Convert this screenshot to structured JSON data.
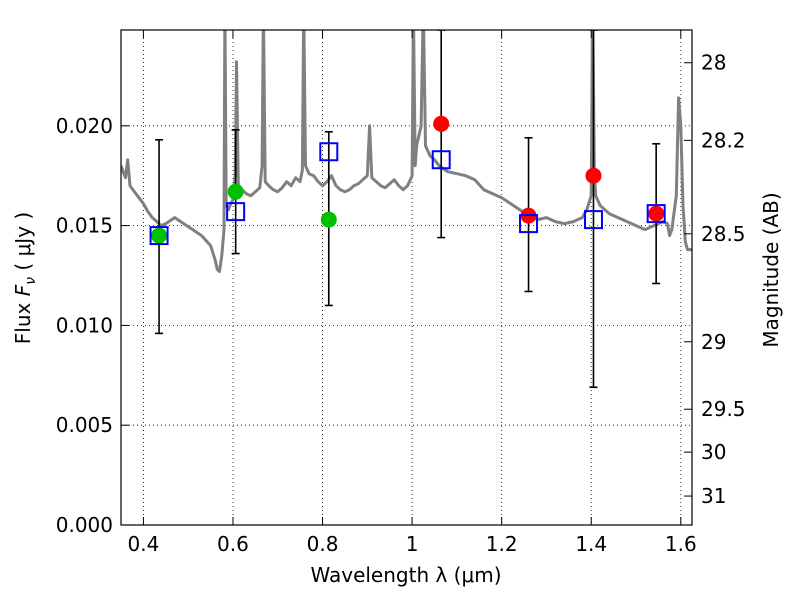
{
  "chart_data": {
    "type": "scatter",
    "xlabel": "Wavelength  λ (μm)",
    "ylabel_parts": {
      "flux": "Flux",
      "symbol": "F",
      "subscript": "ν",
      "unit": "( μJy )"
    },
    "ylabel_right": "Magnitude (AB)",
    "xlim": [
      0.35,
      1.625
    ],
    "ylim": [
      0.0,
      0.0248
    ],
    "grid": true,
    "x_ticks": [
      {
        "value": 0.4,
        "label": "0.4"
      },
      {
        "value": 0.6,
        "label": "0.6"
      },
      {
        "value": 0.8,
        "label": "0.8"
      },
      {
        "value": 1.0,
        "label": "1"
      },
      {
        "value": 1.2,
        "label": "1.2"
      },
      {
        "value": 1.4,
        "label": "1.4"
      },
      {
        "value": 1.6,
        "label": "1.6"
      }
    ],
    "y_ticks": [
      {
        "value": 0.0,
        "label": "0.000"
      },
      {
        "value": 0.005,
        "label": "0.005"
      },
      {
        "value": 0.01,
        "label": "0.010"
      },
      {
        "value": 0.015,
        "label": "0.015"
      },
      {
        "value": 0.02,
        "label": "0.020"
      }
    ],
    "right_ticks": [
      {
        "flux": 0.02316,
        "label": "28"
      },
      {
        "flux": 0.01927,
        "label": "28.2"
      },
      {
        "flux": 0.01459,
        "label": "28.5"
      },
      {
        "flux": 0.00918,
        "label": "29"
      },
      {
        "flux": 0.0058,
        "label": "29.5"
      },
      {
        "flux": 0.00365,
        "label": "30"
      },
      {
        "flux": 0.00145,
        "label": "31"
      }
    ],
    "model_spectrum": {
      "color": "#808080",
      "points": [
        [
          0.35,
          0.018
        ],
        [
          0.36,
          0.0174
        ],
        [
          0.365,
          0.0183
        ],
        [
          0.37,
          0.017
        ],
        [
          0.38,
          0.0167
        ],
        [
          0.39,
          0.0164
        ],
        [
          0.4,
          0.0161
        ],
        [
          0.41,
          0.0157
        ],
        [
          0.42,
          0.0154
        ],
        [
          0.43,
          0.0152
        ],
        [
          0.44,
          0.015
        ],
        [
          0.45,
          0.0151
        ],
        [
          0.47,
          0.0154
        ],
        [
          0.49,
          0.0151
        ],
        [
          0.51,
          0.0148
        ],
        [
          0.53,
          0.0145
        ],
        [
          0.55,
          0.014
        ],
        [
          0.56,
          0.0133
        ],
        [
          0.565,
          0.0128
        ],
        [
          0.57,
          0.0127
        ],
        [
          0.575,
          0.0135
        ],
        [
          0.58,
          0.0148
        ],
        [
          0.582,
          0.026
        ],
        [
          0.585,
          0.016
        ],
        [
          0.59,
          0.0158
        ],
        [
          0.595,
          0.0161
        ],
        [
          0.6,
          0.0163
        ],
        [
          0.605,
          0.0175
        ],
        [
          0.608,
          0.0232
        ],
        [
          0.612,
          0.017
        ],
        [
          0.62,
          0.0168
        ],
        [
          0.63,
          0.0166
        ],
        [
          0.64,
          0.0165
        ],
        [
          0.65,
          0.0167
        ],
        [
          0.66,
          0.0169
        ],
        [
          0.665,
          0.018
        ],
        [
          0.668,
          0.026
        ],
        [
          0.672,
          0.0172
        ],
        [
          0.68,
          0.017
        ],
        [
          0.69,
          0.0168
        ],
        [
          0.7,
          0.0167
        ],
        [
          0.71,
          0.0169
        ],
        [
          0.72,
          0.0172
        ],
        [
          0.73,
          0.017
        ],
        [
          0.74,
          0.0174
        ],
        [
          0.75,
          0.0172
        ],
        [
          0.755,
          0.0178
        ],
        [
          0.758,
          0.026
        ],
        [
          0.762,
          0.018
        ],
        [
          0.77,
          0.0176
        ],
        [
          0.78,
          0.0175
        ],
        [
          0.79,
          0.0172
        ],
        [
          0.8,
          0.017
        ],
        [
          0.81,
          0.0172
        ],
        [
          0.82,
          0.0175
        ],
        [
          0.83,
          0.017
        ],
        [
          0.84,
          0.0168
        ],
        [
          0.85,
          0.0167
        ],
        [
          0.86,
          0.0168
        ],
        [
          0.87,
          0.017
        ],
        [
          0.88,
          0.0171
        ],
        [
          0.89,
          0.0173
        ],
        [
          0.9,
          0.0175
        ],
        [
          0.905,
          0.02
        ],
        [
          0.91,
          0.0174
        ],
        [
          0.92,
          0.0172
        ],
        [
          0.93,
          0.017
        ],
        [
          0.94,
          0.0169
        ],
        [
          0.95,
          0.0171
        ],
        [
          0.96,
          0.0173
        ],
        [
          0.97,
          0.017
        ],
        [
          0.98,
          0.0168
        ],
        [
          0.99,
          0.017
        ],
        [
          1.0,
          0.0175
        ],
        [
          1.003,
          0.026
        ],
        [
          1.007,
          0.018
        ],
        [
          1.01,
          0.019
        ],
        [
          1.02,
          0.02
        ],
        [
          1.025,
          0.026
        ],
        [
          1.03,
          0.019
        ],
        [
          1.04,
          0.0185
        ],
        [
          1.05,
          0.0183
        ],
        [
          1.06,
          0.018
        ],
        [
          1.08,
          0.0177
        ],
        [
          1.1,
          0.0176
        ],
        [
          1.12,
          0.0175
        ],
        [
          1.14,
          0.0173
        ],
        [
          1.16,
          0.0168
        ],
        [
          1.18,
          0.0166
        ],
        [
          1.2,
          0.0164
        ],
        [
          1.22,
          0.0161
        ],
        [
          1.24,
          0.0158
        ],
        [
          1.26,
          0.0155
        ],
        [
          1.28,
          0.0153
        ],
        [
          1.3,
          0.0154
        ],
        [
          1.32,
          0.0152
        ],
        [
          1.34,
          0.0151
        ],
        [
          1.36,
          0.0152
        ],
        [
          1.38,
          0.0154
        ],
        [
          1.39,
          0.0158
        ],
        [
          1.4,
          0.0165
        ],
        [
          1.403,
          0.026
        ],
        [
          1.407,
          0.0175
        ],
        [
          1.41,
          0.0165
        ],
        [
          1.42,
          0.016
        ],
        [
          1.44,
          0.0156
        ],
        [
          1.46,
          0.0154
        ],
        [
          1.48,
          0.0152
        ],
        [
          1.5,
          0.015
        ],
        [
          1.52,
          0.0148
        ],
        [
          1.54,
          0.015
        ],
        [
          1.56,
          0.0152
        ],
        [
          1.57,
          0.0151
        ],
        [
          1.575,
          0.0145
        ],
        [
          1.58,
          0.0148
        ],
        [
          1.59,
          0.0165
        ],
        [
          1.595,
          0.0214
        ],
        [
          1.6,
          0.02
        ],
        [
          1.605,
          0.016
        ],
        [
          1.61,
          0.0142
        ],
        [
          1.615,
          0.0138
        ],
        [
          1.625,
          0.0138
        ]
      ]
    },
    "series": [
      {
        "marker": "open-square",
        "color": "#0000ff",
        "points": [
          {
            "x": 0.435,
            "y": 0.0145,
            "err_lo": 0.0096,
            "err_hi": 0.0193
          },
          {
            "x": 0.606,
            "y": 0.0157,
            "err_lo": 0.0136,
            "err_hi": 0.0198
          },
          {
            "x": 0.814,
            "y": 0.0187,
            "err_lo": 0.011,
            "err_hi": 0.0197
          },
          {
            "x": 1.065,
            "y": 0.0183,
            "err_lo": 0.0144,
            "err_hi": 0.0248
          },
          {
            "x": 1.26,
            "y": 0.0151,
            "err_lo": 0.0117,
            "err_hi": 0.0194
          },
          {
            "x": 1.405,
            "y": 0.0153,
            "err_lo": 0.0069,
            "err_hi": 0.0248
          },
          {
            "x": 1.545,
            "y": 0.0156,
            "err_lo": 0.0121,
            "err_hi": 0.0191
          }
        ]
      },
      {
        "marker": "filled-circle",
        "color": "#00c000",
        "points": [
          {
            "x": 0.435,
            "y": 0.0145
          },
          {
            "x": 0.606,
            "y": 0.0167
          },
          {
            "x": 0.814,
            "y": 0.0153
          }
        ]
      },
      {
        "marker": "filled-circle",
        "color": "#ff0000",
        "points": [
          {
            "x": 1.065,
            "y": 0.0201
          },
          {
            "x": 1.26,
            "y": 0.0155
          },
          {
            "x": 1.405,
            "y": 0.0175
          },
          {
            "x": 1.545,
            "y": 0.0156
          }
        ]
      }
    ]
  }
}
